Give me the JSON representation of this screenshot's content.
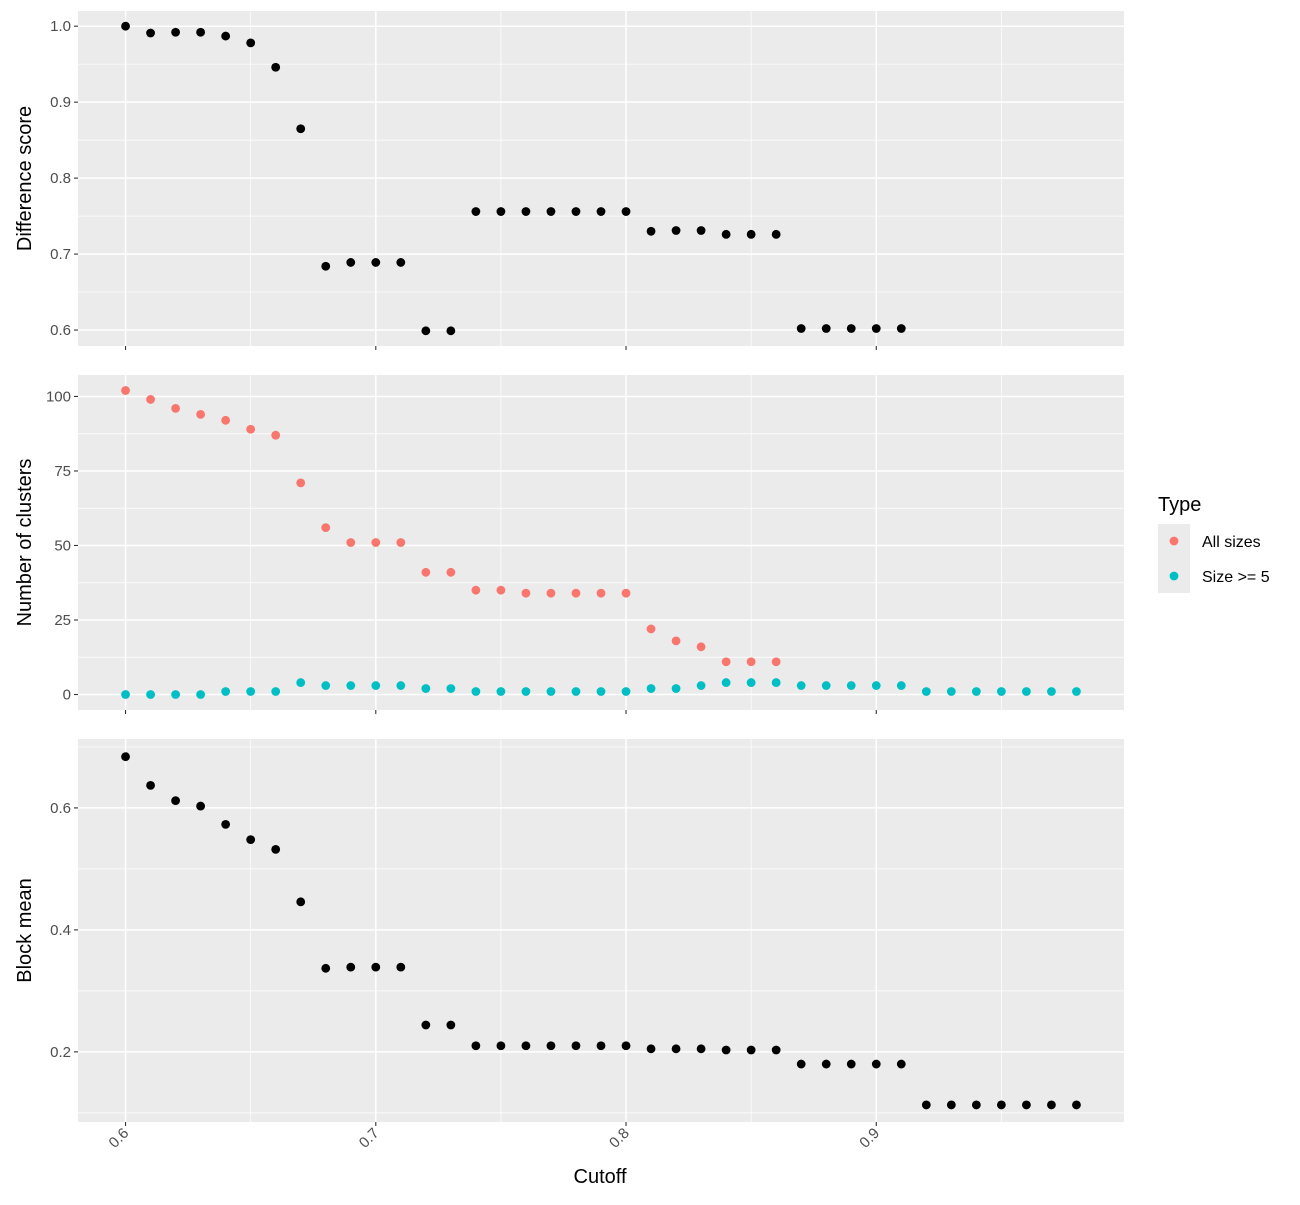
{
  "chart_data": {
    "type": "scatter",
    "x_label": "Cutoff",
    "x_range": [
      0.581,
      0.999
    ],
    "x_ticks": [
      0.6,
      0.7,
      0.8,
      0.9
    ],
    "x_tick_labels": [
      "0.6",
      "0.7",
      "0.8",
      "0.9"
    ],
    "colors": {
      "panel_bg": "#EBEBEB",
      "grid": "#FFFFFF",
      "point": "#000000",
      "tick_text": "#4D4D4D"
    },
    "legend": {
      "title": "Type",
      "position": "right",
      "entries": [
        {
          "label": "All sizes",
          "color": "#F8766D"
        },
        {
          "label": "Size >= 5",
          "color": "#00BFC4"
        }
      ]
    },
    "panels": [
      {
        "y_label": "Difference score",
        "y_range": [
          0.579,
          1.02
        ],
        "y_ticks": [
          0.6,
          0.7,
          0.8,
          0.9,
          1.0
        ],
        "y_tick_labels": [
          "0.6",
          "0.7",
          "0.8",
          "0.9",
          "1.0"
        ],
        "series": [
          {
            "color": "#000000",
            "x": [
              0.6,
              0.61,
              0.62,
              0.63,
              0.64,
              0.65,
              0.66,
              0.67,
              0.68,
              0.69,
              0.7,
              0.71,
              0.72,
              0.73,
              0.74,
              0.75,
              0.76,
              0.77,
              0.78,
              0.79,
              0.8,
              0.81,
              0.82,
              0.83,
              0.84,
              0.85,
              0.86,
              0.87,
              0.88,
              0.89,
              0.9,
              0.91
            ],
            "y": [
              1.0,
              0.991,
              0.992,
              0.992,
              0.987,
              0.978,
              0.946,
              0.865,
              0.684,
              0.689,
              0.689,
              0.689,
              0.599,
              0.599,
              0.756,
              0.756,
              0.756,
              0.756,
              0.756,
              0.756,
              0.756,
              0.73,
              0.731,
              0.731,
              0.726,
              0.726,
              0.726,
              0.602,
              0.602,
              0.602,
              0.602,
              0.602
            ]
          }
        ]
      },
      {
        "y_label": "Number of clusters",
        "y_range": [
          -5.2,
          107.2
        ],
        "y_ticks": [
          0,
          25,
          50,
          75,
          100
        ],
        "y_tick_labels": [
          "0",
          "25",
          "50",
          "75",
          "100"
        ],
        "series": [
          {
            "name": "All sizes",
            "color": "#F8766D",
            "x": [
              0.6,
              0.61,
              0.62,
              0.63,
              0.64,
              0.65,
              0.66,
              0.67,
              0.68,
              0.69,
              0.7,
              0.71,
              0.72,
              0.73,
              0.74,
              0.75,
              0.76,
              0.77,
              0.78,
              0.79,
              0.8,
              0.81,
              0.82,
              0.83,
              0.84,
              0.85,
              0.86
            ],
            "y": [
              102,
              99,
              96,
              94,
              92,
              89,
              87,
              71,
              56,
              51,
              51,
              51,
              41,
              41,
              35,
              35,
              34,
              34,
              34,
              34,
              34,
              22,
              18,
              16,
              11,
              11,
              11
            ]
          },
          {
            "name": "Size >= 5",
            "color": "#00BFC4",
            "x": [
              0.6,
              0.61,
              0.62,
              0.63,
              0.64,
              0.65,
              0.66,
              0.67,
              0.68,
              0.69,
              0.7,
              0.71,
              0.72,
              0.73,
              0.74,
              0.75,
              0.76,
              0.77,
              0.78,
              0.79,
              0.8,
              0.81,
              0.82,
              0.83,
              0.84,
              0.85,
              0.86,
              0.87,
              0.88,
              0.89,
              0.9,
              0.91,
              0.92,
              0.93,
              0.94,
              0.95,
              0.96,
              0.97,
              0.98
            ],
            "y": [
              0,
              0,
              0,
              0,
              1,
              1,
              1,
              4,
              3,
              3,
              3,
              3,
              2,
              2,
              1,
              1,
              1,
              1,
              1,
              1,
              1,
              2,
              2,
              3,
              4,
              4,
              4,
              3,
              3,
              3,
              3,
              3,
              1,
              1,
              1,
              1,
              1,
              1,
              1
            ]
          }
        ]
      },
      {
        "y_label": "Block mean",
        "y_range": [
          0.085,
          0.713
        ],
        "y_ticks": [
          0.2,
          0.4,
          0.6
        ],
        "y_tick_labels": [
          "0.2",
          "0.4",
          "0.6"
        ],
        "series": [
          {
            "color": "#000000",
            "x": [
              0.6,
              0.61,
              0.62,
              0.63,
              0.64,
              0.65,
              0.66,
              0.67,
              0.68,
              0.69,
              0.7,
              0.71,
              0.72,
              0.73,
              0.74,
              0.75,
              0.76,
              0.77,
              0.78,
              0.79,
              0.8,
              0.81,
              0.82,
              0.83,
              0.84,
              0.85,
              0.86,
              0.87,
              0.88,
              0.89,
              0.9,
              0.91,
              0.92,
              0.93,
              0.94,
              0.95,
              0.96,
              0.97,
              0.98
            ],
            "y": [
              0.684,
              0.637,
              0.612,
              0.603,
              0.573,
              0.548,
              0.532,
              0.446,
              0.337,
              0.339,
              0.339,
              0.339,
              0.244,
              0.244,
              0.21,
              0.21,
              0.21,
              0.21,
              0.21,
              0.21,
              0.21,
              0.205,
              0.205,
              0.205,
              0.203,
              0.203,
              0.203,
              0.18,
              0.18,
              0.18,
              0.18,
              0.18,
              0.113,
              0.113,
              0.113,
              0.113,
              0.113,
              0.113,
              0.113
            ]
          }
        ]
      }
    ]
  }
}
